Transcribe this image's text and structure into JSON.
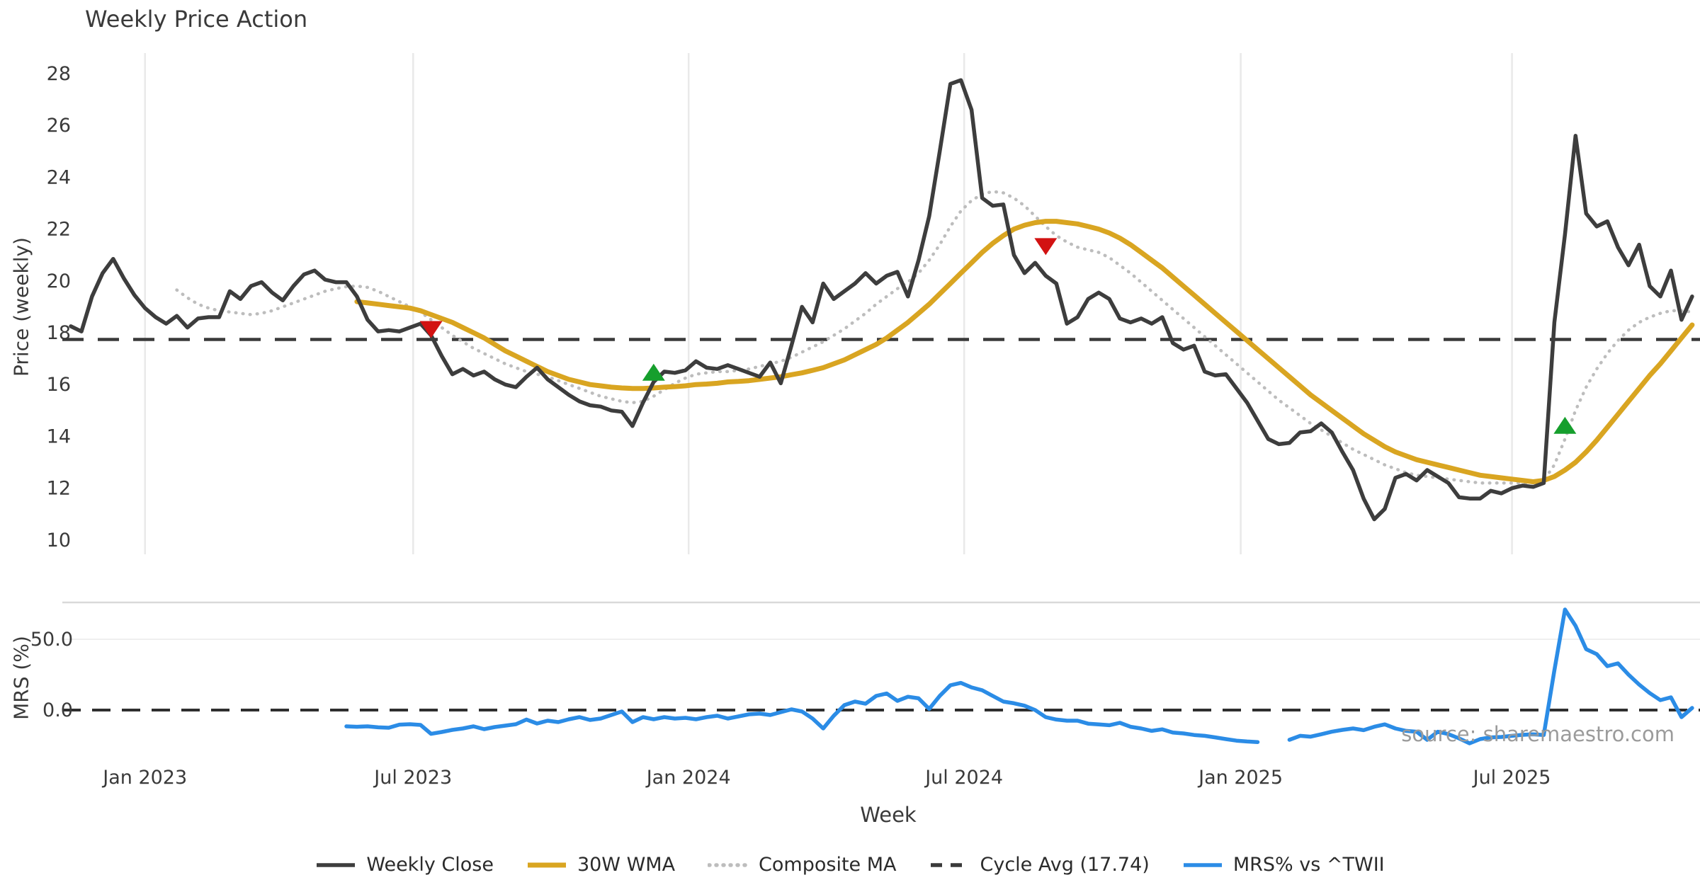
{
  "title": "Weekly Price Action",
  "source_note": "source: sharemaestro.com",
  "colors": {
    "close": "#3d3d3d",
    "wma": "#d9a521",
    "composite": "#bdbdbd",
    "cycle": "#3a3a3a",
    "mrs": "#2b8ce6",
    "buy": "#169f2d",
    "sell": "#d21212",
    "grid": "#e9e9e9",
    "panel_border": "#d9d9d9",
    "minor_grid": "#efefef",
    "text": "#3a3a3a",
    "muted_text": "#9b9b9b"
  },
  "legend": [
    {
      "label": "Weekly Close",
      "style": "solid",
      "color": "#3d3d3d"
    },
    {
      "label": "30W WMA",
      "style": "solid-thick",
      "color": "#d9a521"
    },
    {
      "label": "Composite MA",
      "style": "dotted",
      "color": "#bdbdbd"
    },
    {
      "label": "Cycle Avg (17.74)",
      "style": "dashed",
      "color": "#3a3a3a"
    },
    {
      "label": "MRS% vs ^TWII",
      "style": "solid",
      "color": "#2b8ce6"
    }
  ],
  "chart_data": [
    {
      "type": "line",
      "title": "Weekly Price Action",
      "ylabel": "Price (weekly)",
      "xlabel": "Week",
      "ylim": [
        9.3,
        28.8
      ],
      "yticks": [
        28,
        26,
        24,
        22,
        20,
        18,
        16,
        14,
        12,
        10
      ],
      "x_unit": "week_index_from_2022-11-14",
      "x_ticks": [
        {
          "week": 7.0,
          "label": "Jan 2023"
        },
        {
          "week": 32.3,
          "label": "Jul 2023"
        },
        {
          "week": 58.3,
          "label": "Jan 2024"
        },
        {
          "week": 84.3,
          "label": "Jul 2024"
        },
        {
          "week": 110.4,
          "label": "Jan 2025"
        },
        {
          "week": 136.0,
          "label": "Jul 2025"
        }
      ],
      "cycle_avg": {
        "label": "Cycle Avg (17.74)",
        "value": 17.74
      },
      "markers": {
        "sell": [
          {
            "week": 34,
            "price": 18.15
          },
          {
            "week": 92,
            "price": 21.35
          }
        ],
        "buy": [
          {
            "week": 55,
            "price": 16.45
          },
          {
            "week": 141,
            "price": 14.4
          }
        ]
      },
      "series": [
        {
          "name": "Weekly Close",
          "start_week": 0,
          "values": [
            18.25,
            18.05,
            19.4,
            20.3,
            20.85,
            20.1,
            19.45,
            18.95,
            18.6,
            18.35,
            18.65,
            18.2,
            18.55,
            18.6,
            18.6,
            19.6,
            19.3,
            19.8,
            19.95,
            19.55,
            19.25,
            19.8,
            20.25,
            20.4,
            20.05,
            19.95,
            19.95,
            19.4,
            18.5,
            18.05,
            18.1,
            18.05,
            18.2,
            18.35,
            17.9,
            17.1,
            16.4,
            16.6,
            16.35,
            16.5,
            16.2,
            16.0,
            15.9,
            16.3,
            16.65,
            16.2,
            15.9,
            15.6,
            15.35,
            15.2,
            15.15,
            15.0,
            14.95,
            14.4,
            15.3,
            16.1,
            16.5,
            16.45,
            16.55,
            16.9,
            16.65,
            16.6,
            16.75,
            16.6,
            16.45,
            16.3,
            16.85,
            16.05,
            17.5,
            19.0,
            18.4,
            19.9,
            19.3,
            19.6,
            19.9,
            20.3,
            19.9,
            20.2,
            20.35,
            19.4,
            20.8,
            22.5,
            25.0,
            27.6,
            27.75,
            26.6,
            23.2,
            22.9,
            22.95,
            21.0,
            20.3,
            20.7,
            20.2,
            19.9,
            18.35,
            18.6,
            19.3,
            19.55,
            19.3,
            18.55,
            18.4,
            18.55,
            18.35,
            18.6,
            17.6,
            17.35,
            17.5,
            16.5,
            16.35,
            16.4,
            15.85,
            15.3,
            14.6,
            13.9,
            13.7,
            13.75,
            14.15,
            14.2,
            14.5,
            14.15,
            13.4,
            12.7,
            11.6,
            10.8,
            11.2,
            12.4,
            12.55,
            12.3,
            12.7,
            12.45,
            12.2,
            11.65,
            11.6,
            11.6,
            11.9,
            11.8,
            12.0,
            12.1,
            12.05,
            12.2,
            18.4,
            21.8,
            25.6,
            22.6,
            22.1,
            22.3,
            21.3,
            20.6,
            21.4,
            19.8,
            19.4,
            20.4,
            18.5,
            19.4
          ]
        },
        {
          "name": "30W WMA",
          "start_week": 27,
          "values": [
            19.2,
            19.15,
            19.1,
            19.05,
            19.0,
            18.95,
            18.85,
            18.7,
            18.55,
            18.4,
            18.2,
            18.0,
            17.8,
            17.55,
            17.3,
            17.1,
            16.9,
            16.7,
            16.5,
            16.35,
            16.2,
            16.1,
            16.0,
            15.95,
            15.9,
            15.87,
            15.85,
            15.85,
            15.87,
            15.9,
            15.92,
            15.95,
            16.0,
            16.02,
            16.05,
            16.1,
            16.12,
            16.15,
            16.2,
            16.25,
            16.3,
            16.38,
            16.45,
            16.55,
            16.65,
            16.8,
            16.95,
            17.15,
            17.35,
            17.55,
            17.8,
            18.1,
            18.4,
            18.75,
            19.1,
            19.5,
            19.9,
            20.3,
            20.7,
            21.1,
            21.45,
            21.75,
            22.0,
            22.15,
            22.25,
            22.3,
            22.3,
            22.25,
            22.2,
            22.1,
            22.0,
            21.85,
            21.65,
            21.4,
            21.1,
            20.8,
            20.5,
            20.15,
            19.8,
            19.45,
            19.1,
            18.75,
            18.4,
            18.05,
            17.7,
            17.35,
            17.0,
            16.65,
            16.3,
            15.95,
            15.6,
            15.3,
            15.0,
            14.7,
            14.4,
            14.1,
            13.85,
            13.6,
            13.4,
            13.25,
            13.1,
            13.0,
            12.9,
            12.8,
            12.7,
            12.6,
            12.5,
            12.45,
            12.4,
            12.35,
            12.3,
            12.25,
            12.3,
            12.45,
            12.7,
            13.0,
            13.4,
            13.85,
            14.35,
            14.85,
            15.35,
            15.85,
            16.35,
            16.8,
            17.3,
            17.8,
            18.3
          ]
        },
        {
          "name": "Composite MA",
          "start_week": 10,
          "values": [
            19.65,
            19.35,
            19.1,
            18.95,
            18.85,
            18.8,
            18.75,
            18.7,
            18.75,
            18.85,
            19.0,
            19.15,
            19.3,
            19.45,
            19.6,
            19.7,
            19.78,
            19.8,
            19.75,
            19.6,
            19.4,
            19.2,
            19.0,
            18.8,
            18.5,
            18.2,
            17.9,
            17.65,
            17.4,
            17.2,
            17.0,
            16.8,
            16.65,
            16.5,
            16.4,
            16.3,
            16.15,
            16.0,
            15.85,
            15.7,
            15.55,
            15.45,
            15.35,
            15.3,
            15.35,
            15.55,
            15.8,
            16.05,
            16.25,
            16.4,
            16.45,
            16.5,
            16.5,
            16.55,
            16.6,
            16.7,
            16.8,
            16.9,
            17.05,
            17.25,
            17.45,
            17.65,
            17.9,
            18.15,
            18.45,
            18.75,
            19.1,
            19.4,
            19.7,
            19.95,
            20.3,
            20.8,
            21.4,
            22.1,
            22.7,
            23.1,
            23.35,
            23.45,
            23.4,
            23.2,
            22.9,
            22.5,
            22.1,
            21.75,
            21.5,
            21.3,
            21.2,
            21.1,
            20.9,
            20.6,
            20.3,
            19.95,
            19.6,
            19.25,
            18.9,
            18.55,
            18.2,
            17.85,
            17.5,
            17.15,
            16.8,
            16.45,
            16.1,
            15.75,
            15.4,
            15.1,
            14.8,
            14.5,
            14.25,
            14.0,
            13.75,
            13.5,
            13.3,
            13.1,
            12.9,
            12.75,
            12.6,
            12.5,
            12.45,
            12.4,
            12.35,
            12.3,
            12.25,
            12.2,
            12.2,
            12.2,
            12.2,
            12.2,
            12.2,
            12.3,
            12.9,
            13.9,
            15.0,
            15.9,
            16.6,
            17.2,
            17.7,
            18.1,
            18.4,
            18.6,
            18.75,
            18.85,
            18.85,
            18.8
          ]
        }
      ]
    },
    {
      "type": "line",
      "ylabel": "MRS (%)",
      "yticks": [
        50.0,
        0.0
      ],
      "zero_line": true,
      "series": [
        {
          "name": "MRS% vs ^TWII",
          "start_week": 26,
          "values": [
            -11.5,
            -11.8,
            -11.5,
            -12.2,
            -12.5,
            -10.3,
            -10.0,
            -10.5,
            -16.8,
            -15.5,
            -14.0,
            -13.0,
            -11.5,
            -13.5,
            -12.0,
            -11.0,
            -10.0,
            -6.7,
            -9.5,
            -7.5,
            -8.5,
            -6.5,
            -5.0,
            -7.0,
            -6.0,
            -3.5,
            -1.0,
            -8.5,
            -5.0,
            -6.5,
            -5.0,
            -6.0,
            -5.5,
            -6.5,
            -5.0,
            -4.0,
            -6.0,
            -4.5,
            -3.0,
            -2.5,
            -3.5,
            -1.5,
            0.5,
            -1.0,
            -6.0,
            -13.0,
            -4.0,
            3.5,
            6.0,
            4.5,
            10.0,
            11.7,
            6.5,
            9.4,
            8.3,
            0.8,
            10.0,
            17.5,
            19.2,
            16.0,
            14.0,
            10.0,
            6.0,
            4.8,
            3.1,
            0.0,
            -5.0,
            -6.7,
            -7.5,
            -7.5,
            -9.6,
            -10.1,
            -10.7,
            -9.0,
            -11.8,
            -13.0,
            -14.7,
            -13.6,
            -15.9,
            -16.5,
            -17.6,
            -18.2,
            -19.3,
            -20.5,
            -21.6,
            -22.2,
            -22.6,
            null,
            null,
            -21.0,
            -18.2,
            -18.8,
            -17.1,
            -15.3,
            -14.0,
            -13.0,
            -14.2,
            -11.8,
            -10.1,
            -13.0,
            -14.7,
            -15.3,
            -21.0,
            -15.3,
            -17.0,
            -20.0,
            -23.5,
            -20.5,
            -19.3,
            -19.0,
            -18.2,
            -17.5,
            -17.1,
            -17.6,
            28.0,
            71.0,
            59.5,
            43.0,
            39.5,
            31.0,
            33.0,
            25.0,
            18.0,
            12.0,
            7.0,
            9.0,
            -5.0,
            1.5
          ]
        }
      ]
    }
  ]
}
